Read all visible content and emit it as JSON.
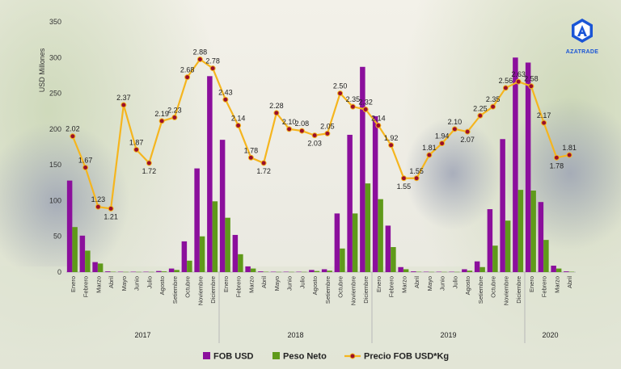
{
  "brand": "AZATRADE",
  "chart_data": {
    "type": "bar",
    "ylabel": "USD Millones",
    "ylim": [
      0,
      350
    ],
    "yticks": [
      0,
      50,
      100,
      150,
      200,
      250,
      300,
      350
    ],
    "categories": [
      "Enero",
      "Febrero",
      "Marzo",
      "Abril",
      "Mayo",
      "Junio",
      "Julio",
      "Agosto",
      "Setiembre",
      "Octubre",
      "Noviembre",
      "Diciembre",
      "Enero",
      "Febrero",
      "Marzo",
      "Abril",
      "Mayo",
      "Junio",
      "Julio",
      "Agosto",
      "Setiembre",
      "Octubre",
      "Noviembre",
      "Diciembre",
      "Enero",
      "Febrero",
      "Marzo",
      "Abril",
      "Mayo",
      "Junio",
      "Julio",
      "Agosto",
      "Setiembre",
      "Octubre",
      "Noviembre",
      "Diciembre",
      "Enero",
      "Febrero",
      "Marzo",
      "Abril"
    ],
    "years": [
      {
        "label": "2017",
        "start": 0,
        "end": 11
      },
      {
        "label": "2018",
        "start": 12,
        "end": 23
      },
      {
        "label": "2019",
        "start": 24,
        "end": 35
      },
      {
        "label": "2020",
        "start": 36,
        "end": 39
      }
    ],
    "series": [
      {
        "name": "FOB USD",
        "type": "bar",
        "color": "#8b0f9c",
        "values": [
          128,
          51,
          14,
          1,
          0.5,
          0.5,
          0.5,
          1.5,
          5,
          43,
          145,
          274,
          185,
          52,
          8,
          1,
          0.5,
          0.5,
          0.5,
          3,
          4,
          82,
          192,
          287,
          218,
          65,
          7,
          1,
          0.5,
          0.5,
          0.5,
          4,
          15,
          88,
          186,
          300,
          293,
          98,
          9,
          1
        ]
      },
      {
        "name": "Peso Neto",
        "type": "bar",
        "color": "#5f9a1a",
        "values": [
          63,
          30,
          12,
          0.5,
          0.3,
          0.3,
          0.3,
          1,
          3,
          16,
          50,
          99,
          76,
          25,
          5,
          0.5,
          0.3,
          0.3,
          0.3,
          1.5,
          2,
          33,
          82,
          124,
          102,
          35,
          4,
          0.5,
          0.3,
          0.3,
          0.3,
          2,
          7,
          37,
          72,
          115,
          114,
          45,
          5,
          0.5
        ]
      }
    ],
    "line_series": {
      "name": "Precio FOB USD*Kg",
      "color": "#f5b51e",
      "marker_color": "#9b0f2a",
      "indices": [
        0,
        1,
        2,
        3,
        4,
        5,
        6,
        7,
        8,
        9,
        10,
        11,
        12,
        13,
        14,
        15,
        16,
        17,
        18,
        19,
        20,
        21,
        22,
        23,
        24,
        25,
        26,
        27,
        28,
        29,
        30,
        31,
        32,
        33,
        34,
        35,
        36,
        37,
        38,
        39
      ],
      "values": [
        2.02,
        1.67,
        1.23,
        1.21,
        2.37,
        1.87,
        1.72,
        2.19,
        2.23,
        2.68,
        2.88,
        2.78,
        2.43,
        2.14,
        1.78,
        1.72,
        2.28,
        2.1,
        2.08,
        2.03,
        2.05,
        2.5,
        2.35,
        2.32,
        2.14,
        1.92,
        1.55,
        1.55,
        1.81,
        1.94,
        2.1,
        2.07,
        2.25,
        2.35,
        2.56,
        2.63,
        2.58,
        2.17,
        1.78,
        1.81
      ],
      "labels": [
        "2.02",
        "1.67",
        "1.23",
        "1.21",
        "2.37",
        "1.87",
        "1.72",
        "2.19",
        "2.23",
        "2.68",
        "2.88",
        "2.78",
        "2.43",
        "2.14",
        "1.78",
        "1.72",
        "2.28",
        "2.10",
        "2.08",
        "2.03",
        "2.05",
        "2.50",
        "2.35",
        "2.32",
        "2.14",
        "1.92",
        "1.55",
        "1.55",
        "1.81",
        "1.94",
        "2.10",
        "2.07",
        "2.25",
        "2.35",
        "2.56",
        "2.63",
        "2.58",
        "2.17",
        "1.78",
        "1.81"
      ]
    },
    "legend": {
      "position": "bottom",
      "items": [
        "FOB USD",
        "Peso Neto",
        "Precio FOB USD*Kg"
      ]
    },
    "grid": false
  }
}
